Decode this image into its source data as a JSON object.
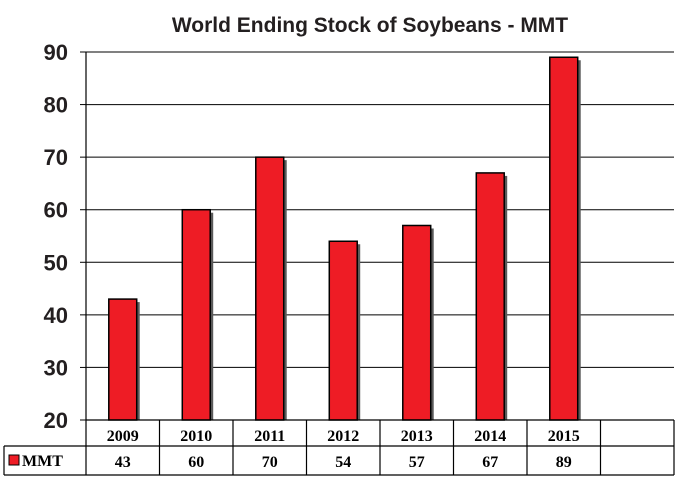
{
  "chart_data": {
    "type": "bar",
    "title": "World Ending Stock of Soybeans - MMT",
    "categories": [
      "2009",
      "2010",
      "2011",
      "2012",
      "2013",
      "2014",
      "2015"
    ],
    "series": [
      {
        "name": "MMT",
        "values": [
          43,
          60,
          70,
          54,
          57,
          67,
          89
        ],
        "color": "#ee1c25"
      }
    ],
    "table_values": [
      "43",
      "60",
      "70",
      "54",
      "57",
      "67",
      "89"
    ],
    "ylim": [
      20,
      90
    ],
    "yticks": [
      20,
      30,
      40,
      50,
      60,
      70,
      80,
      90
    ],
    "grid": true,
    "legend_placement": "data-table-left",
    "bar_color": "#ee1c25",
    "bar_outline_color": "#000000"
  }
}
